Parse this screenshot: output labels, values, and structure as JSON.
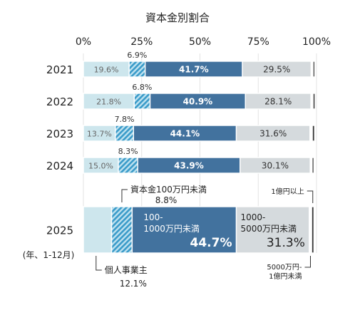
{
  "chart_data": {
    "type": "bar",
    "orientation": "horizontal",
    "stacked": true,
    "normalized_percent": true,
    "title": "資本金別割合",
    "x_ticks": [
      "0%",
      "25%",
      "50%",
      "75%",
      "100%"
    ],
    "xlim": [
      0,
      100
    ],
    "categories": [
      "2021",
      "2022",
      "2023",
      "2024",
      "2025"
    ],
    "y_note": "(年、1-12月)",
    "series": [
      {
        "key": "individual",
        "color": "#cde6ed",
        "pattern": "none",
        "values": [
          19.6,
          21.8,
          13.7,
          15.0,
          12.1
        ]
      },
      {
        "key": "under_1m",
        "color": "#3a9bc9",
        "pattern": "hatch",
        "values": [
          6.9,
          6.8,
          7.8,
          8.3,
          8.8
        ]
      },
      {
        "key": "1m_10m",
        "color": "#42729e",
        "pattern": "none",
        "values": [
          41.7,
          40.9,
          44.1,
          43.9,
          44.7
        ]
      },
      {
        "key": "10m_50m",
        "color": "#d5dadd",
        "pattern": "none",
        "values": [
          29.5,
          28.1,
          31.6,
          30.1,
          31.3
        ]
      },
      {
        "key": "50m_100m",
        "color": "#ffffff",
        "pattern": "none",
        "values": [
          0.8,
          0.9,
          1.0,
          0.8,
          1.0
        ]
      },
      {
        "key": "over_100m",
        "color": "#3a3a3a",
        "pattern": "none",
        "values": [
          0.8,
          0.9,
          1.0,
          0.8,
          1.0
        ]
      }
    ],
    "value_labels": {
      "2021": [
        "19.6%",
        "6.9%",
        "41.7%",
        "29.5%"
      ],
      "2022": [
        "21.8%",
        "6.8%",
        "40.9%",
        "28.1%"
      ],
      "2023": [
        "13.7%",
        "7.8%",
        "44.1%",
        "31.6%"
      ],
      "2024": [
        "15.0%",
        "8.3%",
        "43.9%",
        "30.1%"
      ]
    },
    "annotations_2025": {
      "under_1m_name": "資本金100万円未満",
      "under_1m_value": "8.8%",
      "individual_name": "個人事業主",
      "individual_value": "12.1%",
      "mid_name_line1": "100-",
      "mid_name_line2": "1000万円未満",
      "mid_value": "44.7%",
      "large_name_line1": "1000-",
      "large_name_line2": "5000万円未満",
      "large_value": "31.3%",
      "over_100m_name": "1億円以上",
      "mid_50m_name_line1": "5000万円-",
      "mid_50m_name_line2": "1億円未満"
    },
    "grid": true,
    "legend": "none"
  }
}
